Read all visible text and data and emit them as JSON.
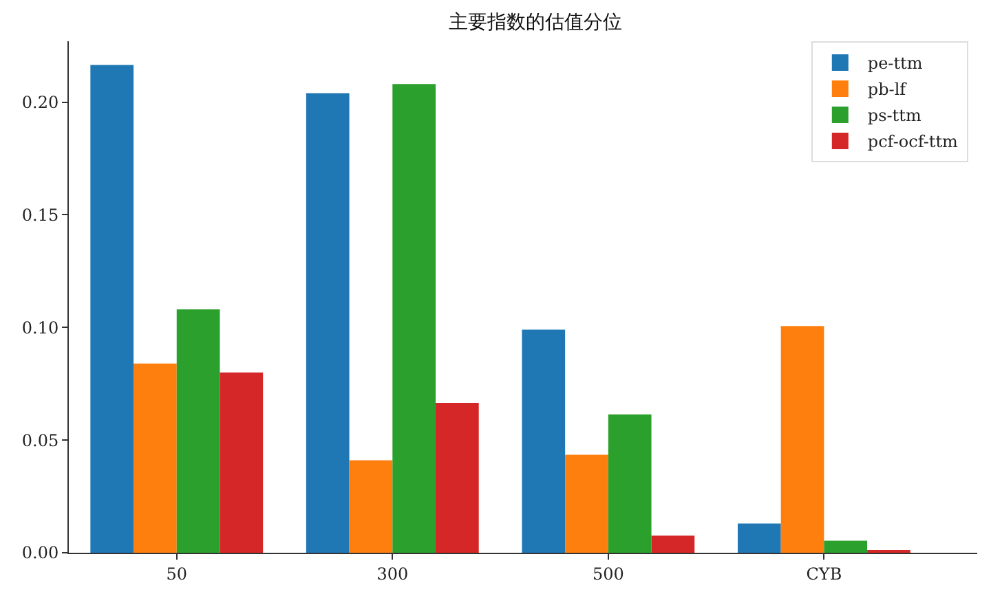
{
  "chart_data": {
    "type": "bar",
    "title": "主要指数的估值分位",
    "categories": [
      "50",
      "300",
      "500",
      "CYB"
    ],
    "series": [
      {
        "name": "pe-ttm",
        "color": "#1f77b4",
        "values": [
          0.2165,
          0.204,
          0.099,
          0.013
        ]
      },
      {
        "name": "pb-lf",
        "color": "#ff7f0e",
        "values": [
          0.084,
          0.041,
          0.0435,
          0.1006
        ]
      },
      {
        "name": "ps-ttm",
        "color": "#2ca02c",
        "values": [
          0.108,
          0.208,
          0.0614,
          0.0053
        ]
      },
      {
        "name": "pcf-ocf-ttm",
        "color": "#d62728",
        "values": [
          0.08,
          0.0665,
          0.0076,
          0.0012
        ]
      }
    ],
    "ylim": [
      0,
      0.227
    ],
    "yticks": [
      {
        "value": 0,
        "label": "0.00"
      },
      {
        "value": 0.05,
        "label": "0.05"
      },
      {
        "value": 0.1,
        "label": "0.10"
      },
      {
        "value": 0.15,
        "label": "0.15"
      },
      {
        "value": 0.2,
        "label": "0.20"
      }
    ],
    "grid": false,
    "legend": "top right"
  }
}
